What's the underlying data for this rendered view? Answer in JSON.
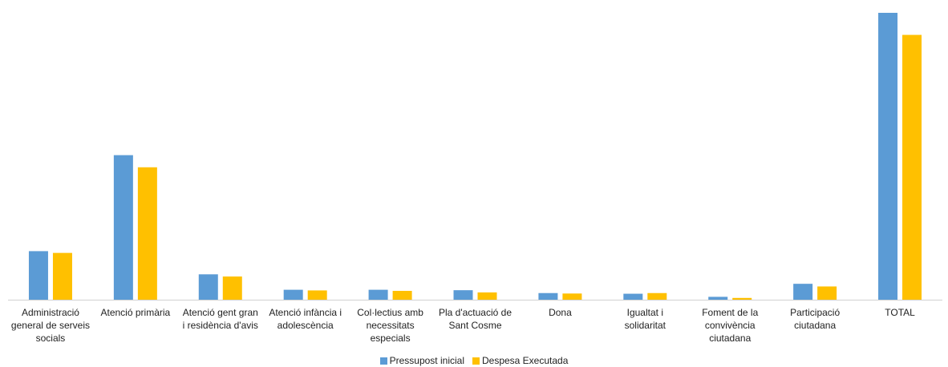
{
  "chart_data": {
    "type": "bar",
    "title": "",
    "xlabel": "",
    "ylabel": "",
    "ylim": [
      0,
      1300
    ],
    "grid": false,
    "legend_position": "bottom",
    "categories": [
      [
        "Administració",
        "general de serveis",
        "socials"
      ],
      [
        "Atenció primària"
      ],
      [
        "Atenció gent gran",
        "i residència d'avis"
      ],
      [
        "Atenció infància i",
        "adolescència"
      ],
      [
        "Col·lectius amb",
        "necessitats",
        "especials"
      ],
      [
        "Pla d'actuació de",
        "Sant Cosme"
      ],
      [
        "Dona"
      ],
      [
        "Igualtat i",
        "solidaritat"
      ],
      [
        "Foment de la",
        "convivència",
        "ciutadana"
      ],
      [
        "Participació",
        "ciutadana"
      ],
      [
        "TOTAL"
      ]
    ],
    "series": [
      {
        "name": "Pressupost inicial",
        "color": "#5B9BD5",
        "values": [
          220,
          655,
          115,
          45,
          45,
          43,
          30,
          27,
          13,
          72,
          1300
        ]
      },
      {
        "name": "Despesa Executada",
        "color": "#FFC000",
        "values": [
          212,
          600,
          105,
          42,
          40,
          33,
          28,
          30,
          8,
          60,
          1200
        ]
      }
    ]
  }
}
